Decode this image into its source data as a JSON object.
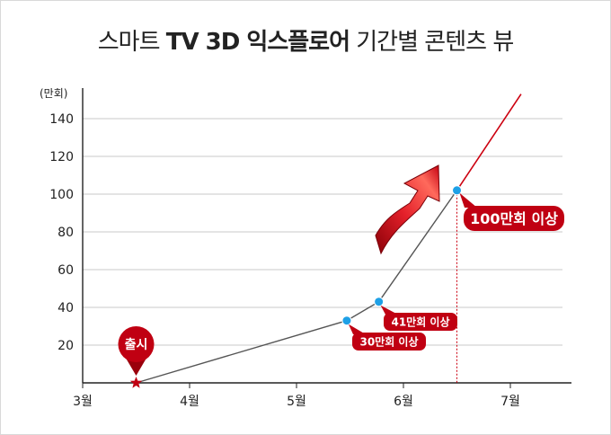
{
  "chart_data": {
    "type": "line",
    "title_part1": "스마트",
    "title_part2": "TV 3D 익스플로어",
    "title_part3": "기간별 콘텐츠 뷰",
    "ylabel": "(만회)",
    "ylim": [
      0,
      150
    ],
    "yticks": [
      20,
      40,
      60,
      80,
      100,
      120,
      140
    ],
    "x_categories": [
      "3월",
      "4월",
      "5월",
      "6월",
      "7월"
    ],
    "series": [
      {
        "points": [
          {
            "month": 3.5,
            "value": 0
          },
          {
            "month": 5.47,
            "value": 33
          },
          {
            "month": 5.77,
            "value": 43
          },
          {
            "month": 6.5,
            "value": 102
          },
          {
            "month": 7.1,
            "value": 153
          }
        ]
      }
    ],
    "grid": true,
    "annotations": {
      "launch": "출시",
      "a30": "30만회 이상",
      "a41": "41만회 이상",
      "a100": "100만회 이상"
    },
    "colors": {
      "line_gray": "#555555",
      "line_red": "#cc0010",
      "marker_blue": "#1ea0e6",
      "callout_red": "#c00012"
    }
  }
}
